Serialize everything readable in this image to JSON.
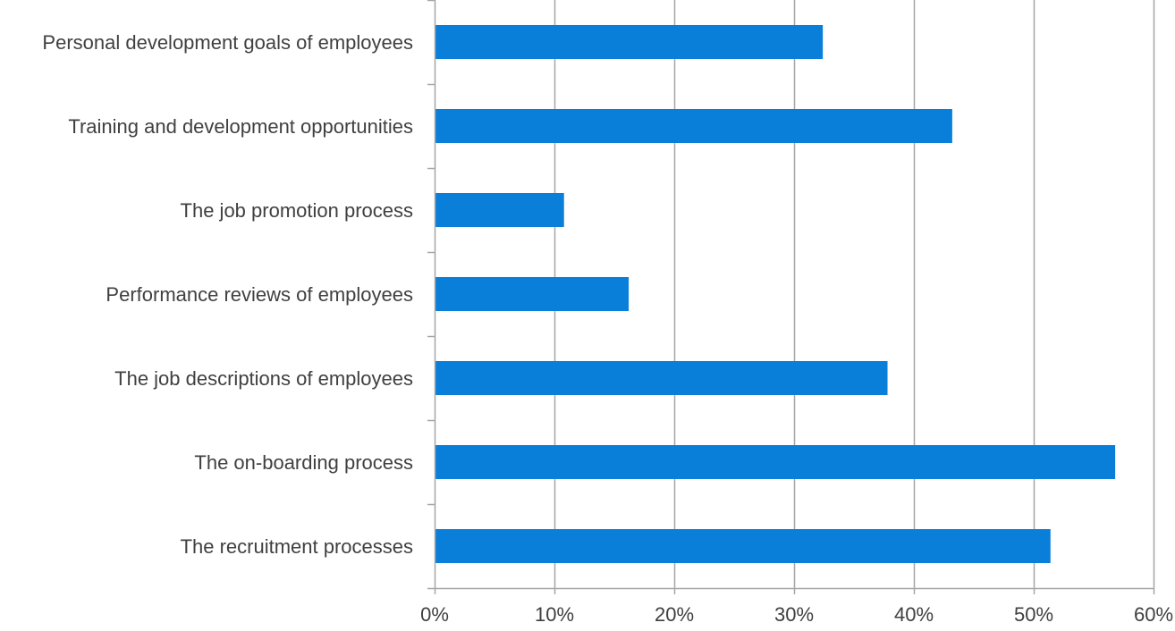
{
  "chart_data": {
    "type": "bar",
    "orientation": "horizontal",
    "categories": [
      "Personal development goals of employees",
      "Training and development opportunities",
      "The job promotion process",
      "Performance reviews of employees",
      "The job descriptions of employees",
      "The on-boarding process",
      "The recruitment processes"
    ],
    "values": [
      32.4,
      43.2,
      10.8,
      16.2,
      37.8,
      56.8,
      51.4
    ],
    "x_ticks": [
      "0%",
      "10%",
      "20%",
      "30%",
      "40%",
      "50%",
      "60%"
    ],
    "xlim": [
      0,
      60
    ],
    "unit": "%",
    "title": "",
    "xlabel": "",
    "ylabel": "",
    "grid": true,
    "legend": "none",
    "bar_color": "#0a7fd9",
    "grid_color": "#a6a6a6",
    "text_color": "#404040"
  }
}
